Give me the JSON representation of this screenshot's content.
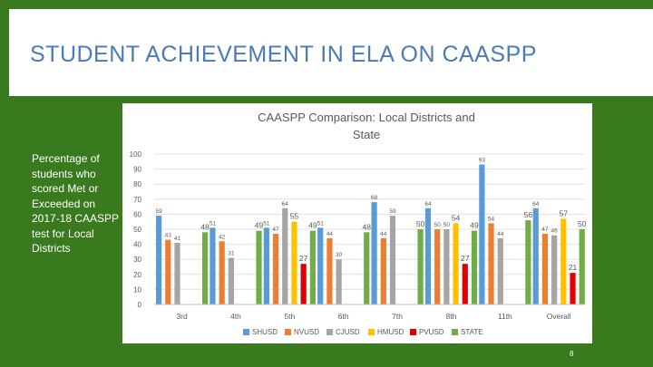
{
  "slide": {
    "title": "STUDENT ACHIEVEMENT IN ELA ON CAASPP",
    "side_text": "Percentage of students who scored Met or Exceeded on 2017-18 CAASPP test for Local Districts",
    "page_number": "8"
  },
  "chart_data": {
    "type": "bar",
    "title_line1": "CAASPP Comparison: Local Districts and",
    "title_line2": "State",
    "categories": [
      "3rd",
      "4th",
      "5th",
      "6th",
      "7th",
      "8th",
      "11th",
      "Overall"
    ],
    "ylim": [
      0,
      100
    ],
    "yticks": [
      0,
      10,
      20,
      30,
      40,
      50,
      60,
      70,
      80,
      90,
      100
    ],
    "legend_position": "bottom",
    "series": [
      {
        "name": "SHUSD",
        "color": "#5b9bd5",
        "values": [
          59,
          51,
          51,
          51,
          68,
          64,
          93,
          64
        ]
      },
      {
        "name": "NVUSD",
        "color": "#ed7d31",
        "values": [
          43,
          42,
          47,
          44,
          44,
          50,
          54,
          47
        ]
      },
      {
        "name": "CJUSD",
        "color": "#a5a5a5",
        "values": [
          41,
          31,
          64,
          30,
          59,
          50,
          44,
          46
        ]
      },
      {
        "name": "HMUSD",
        "color": "#ffc000",
        "values": [
          null,
          null,
          55,
          null,
          null,
          54,
          null,
          57
        ]
      },
      {
        "name": "PVUSD",
        "color": "#e00000",
        "values": [
          null,
          null,
          27,
          null,
          null,
          27,
          null,
          21
        ]
      },
      {
        "name": "STATE",
        "color": "#70ad47",
        "values": [
          48,
          49,
          49,
          48,
          50,
          49,
          56,
          50
        ]
      }
    ]
  }
}
